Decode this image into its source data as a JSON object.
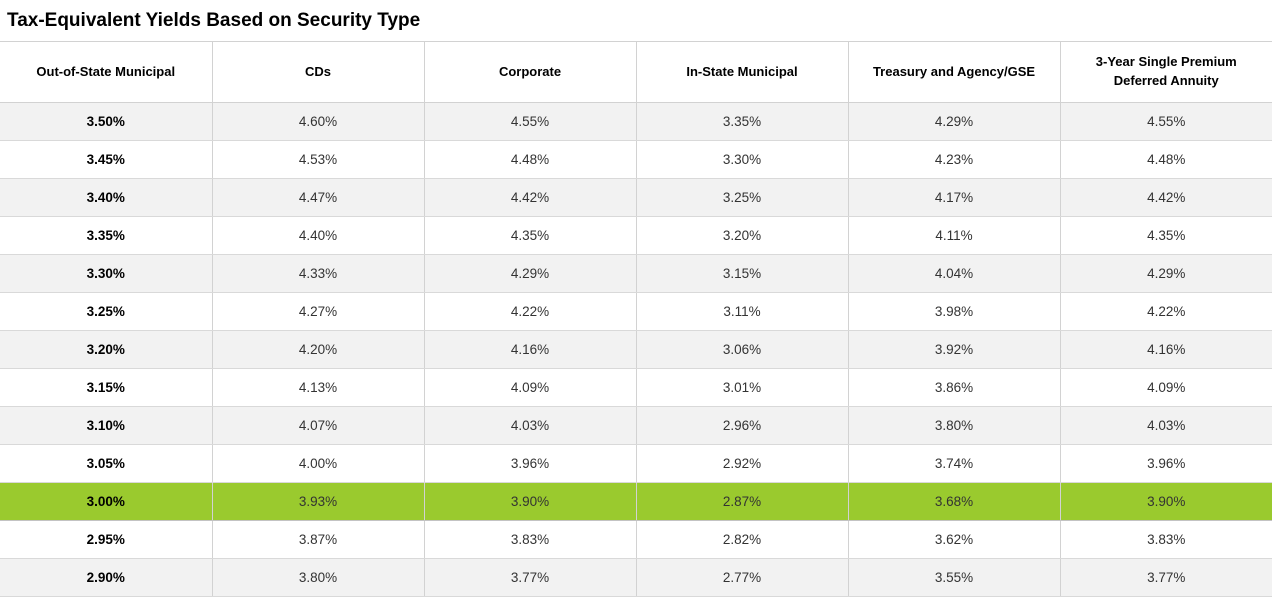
{
  "page": {
    "title": "Tax-Equivalent Yields Based on Security Type"
  },
  "colors": {
    "highlight_row_bg": "#9aca2e",
    "stripe_row_bg": "#f2f2f2",
    "border": "#d2d2d2",
    "header_text": "#000000",
    "cell_text": "#333333"
  },
  "chart_data": {
    "type": "table",
    "title": "Tax-Equivalent Yields Based on Security Type",
    "columns": [
      "Out-of-State Municipal",
      "CDs",
      "Corporate",
      "In-State Municipal",
      "Treasury and Agency/GSE",
      "3-Year Single Premium Deferred Annuity"
    ],
    "rows": [
      [
        "3.50%",
        "4.60%",
        "4.55%",
        "3.35%",
        "4.29%",
        "4.55%"
      ],
      [
        "3.45%",
        "4.53%",
        "4.48%",
        "3.30%",
        "4.23%",
        "4.48%"
      ],
      [
        "3.40%",
        "4.47%",
        "4.42%",
        "3.25%",
        "4.17%",
        "4.42%"
      ],
      [
        "3.35%",
        "4.40%",
        "4.35%",
        "3.20%",
        "4.11%",
        "4.35%"
      ],
      [
        "3.30%",
        "4.33%",
        "4.29%",
        "3.15%",
        "4.04%",
        "4.29%"
      ],
      [
        "3.25%",
        "4.27%",
        "4.22%",
        "3.11%",
        "3.98%",
        "4.22%"
      ],
      [
        "3.20%",
        "4.20%",
        "4.16%",
        "3.06%",
        "3.92%",
        "4.16%"
      ],
      [
        "3.15%",
        "4.13%",
        "4.09%",
        "3.01%",
        "3.86%",
        "4.09%"
      ],
      [
        "3.10%",
        "4.07%",
        "4.03%",
        "2.96%",
        "3.80%",
        "4.03%"
      ],
      [
        "3.05%",
        "4.00%",
        "3.96%",
        "2.92%",
        "3.74%",
        "3.96%"
      ],
      [
        "3.00%",
        "3.93%",
        "3.90%",
        "2.87%",
        "3.68%",
        "3.90%"
      ],
      [
        "2.95%",
        "3.87%",
        "3.83%",
        "2.82%",
        "3.62%",
        "3.83%"
      ],
      [
        "2.90%",
        "3.80%",
        "3.77%",
        "2.77%",
        "3.55%",
        "3.77%"
      ]
    ],
    "highlighted_row_index": 10,
    "highlighted_row_value": "3.00%",
    "layout": {
      "stripe_pattern": "odd rows shaded, starting with first data row",
      "first_column_bold": true,
      "grid": "horizontal and vertical light-gray lines, no outer side borders"
    }
  }
}
